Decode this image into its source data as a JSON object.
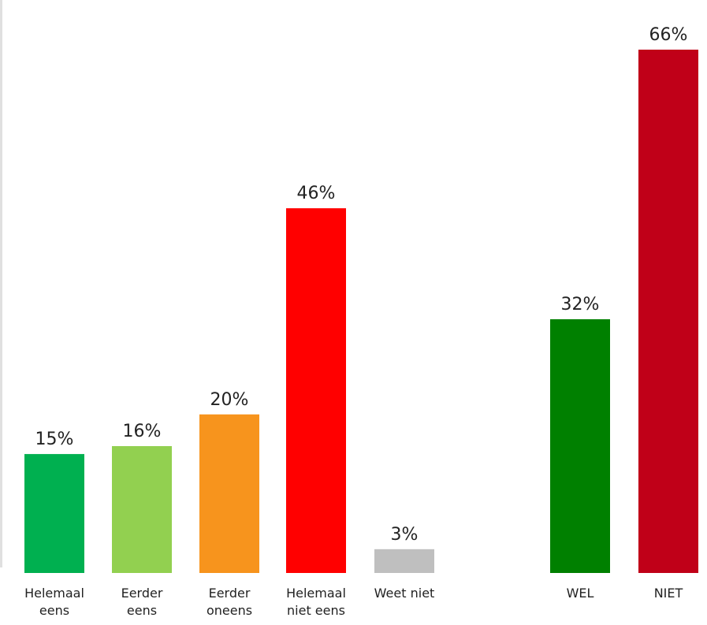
{
  "chart_data": [
    {
      "type": "bar",
      "categories": [
        [
          "Helemaal",
          "eens"
        ],
        [
          "Eerder",
          "eens"
        ],
        [
          "Eerder",
          "oneens"
        ],
        [
          "Helemaal",
          "niet eens"
        ],
        [
          "Weet niet"
        ]
      ],
      "values": [
        15,
        16,
        20,
        46,
        3
      ],
      "value_labels": [
        "15%",
        "16%",
        "20%",
        "46%",
        "3%"
      ],
      "colors": [
        "#00b050",
        "#92d050",
        "#f7941d",
        "#ff0000",
        "#bfbfbf"
      ],
      "ylim": [
        0,
        66
      ],
      "grid": false
    },
    {
      "type": "bar",
      "categories": [
        [
          "WEL"
        ],
        [
          "NIET"
        ]
      ],
      "values": [
        32,
        66
      ],
      "value_labels": [
        "32%",
        "66%"
      ],
      "colors": [
        "#008000",
        "#c00018"
      ],
      "ylim": [
        0,
        66
      ],
      "grid": false
    }
  ]
}
